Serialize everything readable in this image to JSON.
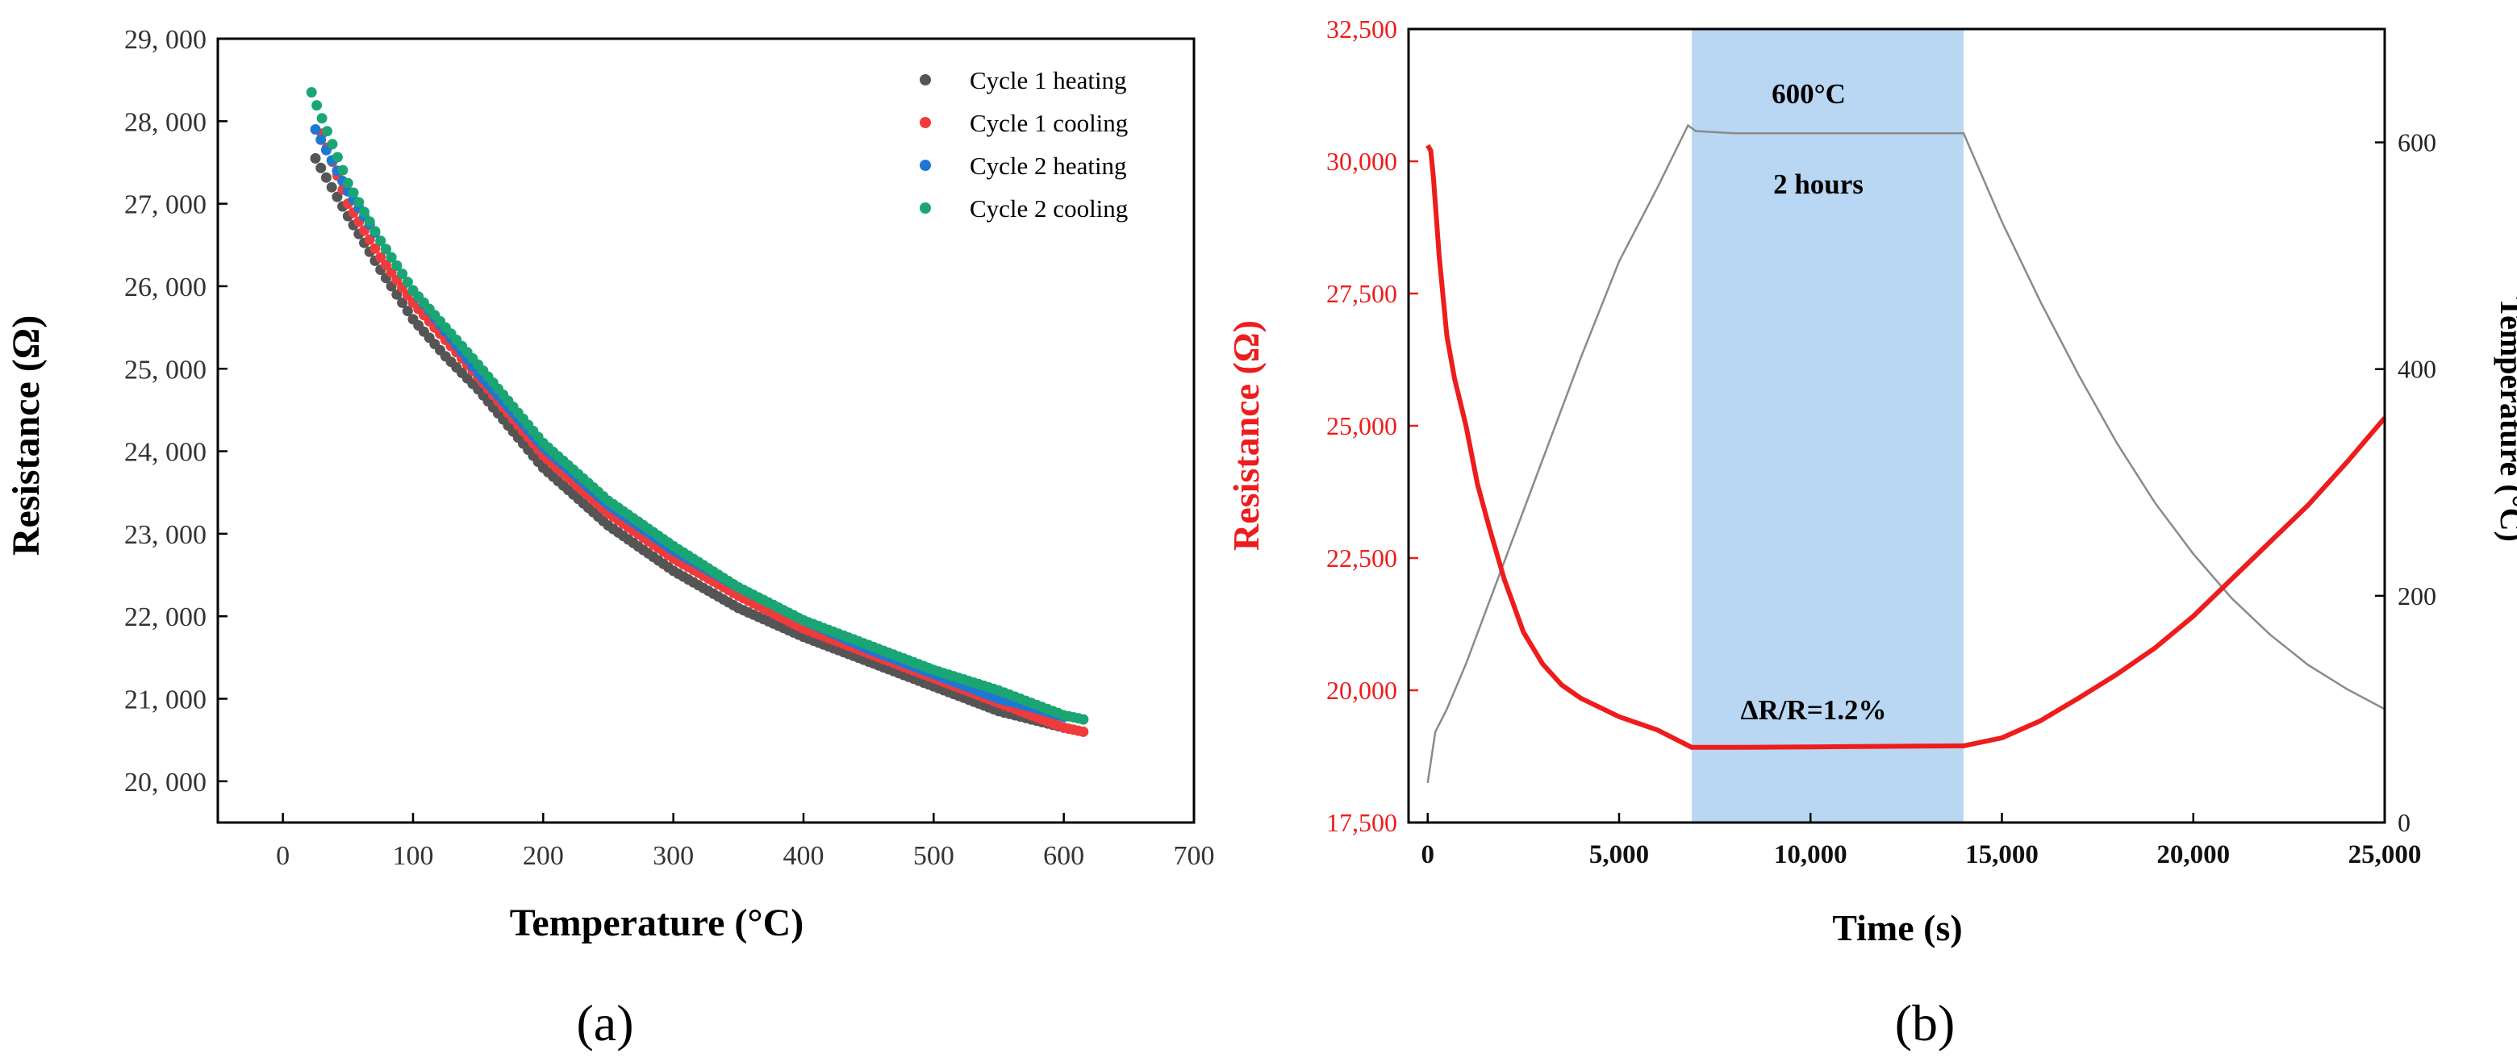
{
  "chart_data": [
    {
      "type": "scatter",
      "panel_label": "(a)",
      "xlabel": "Temperature (°C)",
      "ylabel": "Resistance (Ω)",
      "xlim": [
        -50,
        700
      ],
      "ylim": [
        19500,
        29000
      ],
      "x_ticks": [
        0,
        100,
        200,
        300,
        400,
        500,
        600,
        700
      ],
      "x_tick_labels": [
        "0",
        "100",
        "200",
        "300",
        "400",
        "500",
        "600",
        "700"
      ],
      "y_ticks": [
        20000,
        21000,
        22000,
        23000,
        24000,
        25000,
        26000,
        27000,
        28000,
        29000
      ],
      "y_tick_labels": [
        "20, 000",
        "21, 000",
        "22, 000",
        "23, 000",
        "24, 000",
        "25, 000",
        "26, 000",
        "27, 000",
        "28, 000",
        "29, 000"
      ],
      "legend_position": "top-right",
      "series": [
        {
          "name": "Cycle 1 heating",
          "color": "#555555",
          "x": [
            25,
            50,
            75,
            100,
            125,
            150,
            200,
            250,
            300,
            350,
            400,
            450,
            500,
            550,
            575,
            600
          ],
          "y": [
            27550,
            26850,
            26200,
            25600,
            25150,
            24750,
            23800,
            23100,
            22550,
            22100,
            21750,
            21450,
            21150,
            20850,
            20750,
            20650
          ]
        },
        {
          "name": "Cycle 1 cooling",
          "color": "#ef3b3b",
          "x": [
            615,
            600,
            575,
            550,
            500,
            450,
            400,
            350,
            300,
            250,
            200,
            150,
            125,
            100,
            75,
            50,
            30
          ],
          "y": [
            20600,
            20650,
            20800,
            20950,
            21250,
            21550,
            21850,
            22250,
            22700,
            23250,
            23950,
            24900,
            25350,
            25800,
            26350,
            27000,
            27850
          ]
        },
        {
          "name": "Cycle 2 heating",
          "color": "#1f77d4",
          "x": [
            25,
            50,
            75,
            100,
            125,
            150,
            200,
            250,
            300,
            350,
            400,
            450,
            500,
            550,
            575,
            600
          ],
          "y": [
            27900,
            27150,
            26550,
            25950,
            25450,
            24950,
            24050,
            23350,
            22800,
            22350,
            21950,
            21600,
            21300,
            21000,
            20900,
            20780
          ]
        },
        {
          "name": "Cycle 2 cooling",
          "color": "#1aa672",
          "x": [
            615,
            600,
            575,
            550,
            500,
            450,
            400,
            350,
            300,
            250,
            200,
            150,
            125,
            100,
            75,
            50,
            22
          ],
          "y": [
            20750,
            20800,
            20950,
            21100,
            21350,
            21650,
            21950,
            22350,
            22850,
            23400,
            24100,
            25050,
            25500,
            25950,
            26550,
            27250,
            28350
          ]
        }
      ]
    },
    {
      "type": "line",
      "panel_label": "(b)",
      "xlabel": "Time (s)",
      "ylabel": "Resistance (Ω)",
      "y2label": "Temperature (°C)",
      "xlim": [
        -500,
        25000
      ],
      "ylim": [
        17500,
        32500
      ],
      "y2lim": [
        0,
        700
      ],
      "x_ticks": [
        0,
        5000,
        10000,
        15000,
        20000,
        25000
      ],
      "x_tick_labels": [
        "0",
        "5,000",
        "10,000",
        "15,000",
        "20,000",
        "25,000"
      ],
      "y_ticks": [
        17500,
        20000,
        22500,
        25000,
        27500,
        30000,
        32500
      ],
      "y_tick_labels": [
        "17,500",
        "20,000",
        "22,500",
        "25,000",
        "27,500",
        "30,000",
        "32,500"
      ],
      "y2_ticks": [
        0,
        200,
        400,
        600
      ],
      "y2_tick_labels": [
        "0",
        "200",
        "400",
        "600"
      ],
      "shaded_region": {
        "x_start": 6900,
        "x_end": 14000,
        "color": "#b9d6f2"
      },
      "annotations": {
        "temp": "600°C",
        "duration": "2 hours",
        "delta": "ΔR/R=1.2%"
      },
      "series": [
        {
          "name": "Resistance",
          "axis": "left",
          "color": "#ee1c1c",
          "x": [
            0,
            80,
            150,
            300,
            500,
            700,
            1000,
            1300,
            1600,
            2000,
            2500,
            3000,
            3500,
            4000,
            5000,
            6000,
            6900,
            8000,
            10000,
            12000,
            14000,
            15000,
            16000,
            17000,
            18000,
            19000,
            20000,
            21000,
            22000,
            23000,
            24000,
            25000
          ],
          "y": [
            30300,
            30200,
            29700,
            28200,
            26700,
            25900,
            25000,
            23900,
            23100,
            22100,
            21100,
            20500,
            20100,
            19850,
            19500,
            19250,
            18920,
            18920,
            18930,
            18940,
            18950,
            19100,
            19420,
            19850,
            20300,
            20800,
            21400,
            22100,
            22800,
            23500,
            24300,
            25150
          ]
        },
        {
          "name": "Temperature",
          "axis": "right",
          "color": "#8a8a8a",
          "x": [
            0,
            200,
            500,
            1000,
            2000,
            3000,
            4000,
            5000,
            6000,
            6800,
            7000,
            8000,
            10000,
            12000,
            14000,
            15000,
            16000,
            17000,
            18000,
            19000,
            20000,
            21000,
            22000,
            23000,
            24000,
            25000
          ],
          "y": [
            35,
            80,
            100,
            140,
            230,
            320,
            410,
            495,
            560,
            615,
            610,
            608,
            608,
            608,
            608,
            530,
            460,
            395,
            335,
            282,
            237,
            198,
            166,
            139,
            118,
            100
          ]
        }
      ]
    }
  ]
}
